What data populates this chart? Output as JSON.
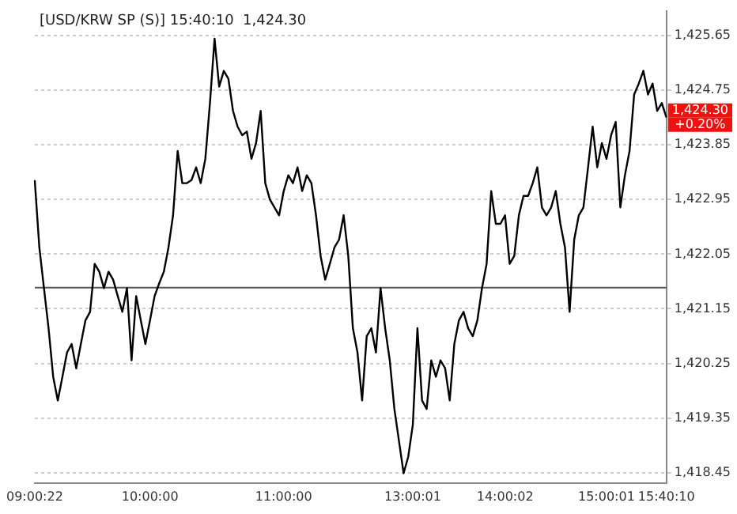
{
  "chart_data": {
    "type": "line",
    "title": "[USD/KRW SP (S)] 15:40:10  1,424.30",
    "categories": [
      "09:00:22",
      null,
      null,
      null,
      null,
      null,
      null,
      null,
      null,
      null,
      null,
      null,
      null,
      null,
      null,
      null,
      null,
      null,
      null,
      null,
      null,
      null,
      null,
      null,
      null,
      "10:00:00",
      null,
      null,
      null,
      null,
      null,
      null,
      null,
      null,
      null,
      null,
      null,
      null,
      null,
      null,
      null,
      null,
      null,
      null,
      null,
      null,
      null,
      null,
      null,
      null,
      null,
      null,
      null,
      null,
      "11:00:00",
      null,
      null,
      null,
      null,
      null,
      null,
      null,
      null,
      null,
      null,
      null,
      null,
      null,
      null,
      null,
      null,
      null,
      null,
      null,
      null,
      null,
      null,
      null,
      null,
      null,
      null,
      null,
      "13:00:01",
      null,
      null,
      null,
      null,
      null,
      null,
      null,
      null,
      null,
      null,
      null,
      null,
      null,
      null,
      null,
      null,
      null,
      null,
      null,
      "14:00:02",
      null,
      null,
      null,
      null,
      null,
      null,
      null,
      null,
      null,
      null,
      null,
      null,
      null,
      null,
      null,
      null,
      null,
      null,
      null,
      null,
      null,
      "15:00:01",
      null,
      null,
      null,
      null,
      null,
      null,
      null,
      null,
      null,
      null,
      null,
      null,
      "15:40:10"
    ],
    "series": [
      {
        "color": "#000000",
        "values": [
          1423.27,
          1422.16,
          1421.49,
          1420.83,
          1420.03,
          1419.64,
          1420.03,
          1420.43,
          1420.57,
          1420.17,
          1420.57,
          1420.96,
          1421.1,
          1421.89,
          1421.76,
          1421.49,
          1421.76,
          1421.63,
          1421.36,
          1421.1,
          1421.49,
          1420.3,
          1421.36,
          1420.96,
          1420.57,
          1420.96,
          1421.36,
          1421.57,
          1421.76,
          1422.16,
          1422.69,
          1423.75,
          1423.22,
          1423.22,
          1423.27,
          1423.48,
          1423.22,
          1423.62,
          1424.54,
          1425.6,
          1424.81,
          1425.07,
          1424.94,
          1424.41,
          1424.15,
          1424.01,
          1424.07,
          1423.62,
          1423.88,
          1424.41,
          1423.22,
          1422.95,
          1422.82,
          1422.69,
          1423.09,
          1423.35,
          1423.22,
          1423.48,
          1423.09,
          1423.35,
          1423.22,
          1422.69,
          1422.02,
          1421.63,
          1421.89,
          1422.16,
          1422.29,
          1422.69,
          1422.02,
          1420.83,
          1420.43,
          1419.64,
          1420.7,
          1420.83,
          1420.43,
          1421.49,
          1420.83,
          1420.3,
          1419.5,
          1418.97,
          1418.44,
          1418.71,
          1419.24,
          1420.83,
          1419.64,
          1419.5,
          1420.3,
          1420.03,
          1420.3,
          1420.17,
          1419.64,
          1420.57,
          1420.96,
          1421.1,
          1420.83,
          1420.7,
          1420.96,
          1421.49,
          1421.89,
          1423.09,
          1422.55,
          1422.55,
          1422.69,
          1421.89,
          1422.02,
          1422.69,
          1423.01,
          1423.01,
          1423.22,
          1423.48,
          1422.82,
          1422.69,
          1422.82,
          1423.09,
          1422.55,
          1422.16,
          1421.1,
          1422.29,
          1422.69,
          1422.82,
          1423.48,
          1424.15,
          1423.48,
          1423.88,
          1423.62,
          1424.01,
          1424.23,
          1422.82,
          1423.35,
          1423.75,
          1424.68,
          1424.86,
          1425.07,
          1424.68,
          1424.86,
          1424.41,
          1424.54,
          1424.3
        ]
      }
    ],
    "ylim": [
      1418.28,
      1426.06
    ],
    "yticks": [
      {
        "value": 1418.45,
        "label": "1,418.45"
      },
      {
        "value": 1419.35,
        "label": "1,419.35"
      },
      {
        "value": 1420.25,
        "label": "1,420.25"
      },
      {
        "value": 1421.15,
        "label": "1,421.15"
      },
      {
        "value": 1422.05,
        "label": "1,422.05"
      },
      {
        "value": 1422.95,
        "label": "1,422.95"
      },
      {
        "value": 1423.85,
        "label": "1,423.85"
      },
      {
        "value": 1424.75,
        "label": "1,424.75"
      },
      {
        "value": 1425.65,
        "label": "1,425.65"
      }
    ],
    "grid": true,
    "line_style": "solid",
    "ref_lines": [
      {
        "axis": "y",
        "value": 1421.5,
        "color": "#555555"
      }
    ],
    "annotations": [
      {
        "text": "1,424.30",
        "x": "15:40:10",
        "y": 1424.3
      },
      "+0.20%"
    ]
  }
}
